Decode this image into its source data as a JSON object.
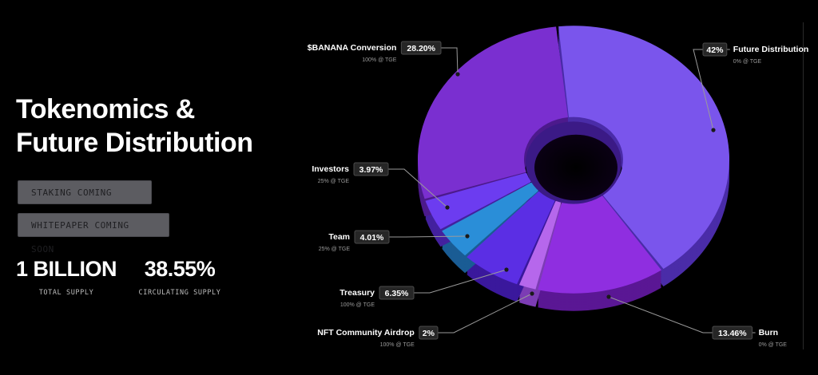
{
  "hero": {
    "title_line1": "Tokenomics &",
    "title_line2": "Future Distribution",
    "staking_button": "STAKING COMING SOON",
    "whitepaper_button": "WHITEPAPER COMING SOON"
  },
  "stats": {
    "total_supply_value": "1 BILLION",
    "total_supply_label": "TOTAL SUPPLY",
    "circulating_value": "38.55%",
    "circulating_label": "CIRCULATING SUPPLY"
  },
  "chart_data": {
    "type": "pie",
    "style": "3d-donut",
    "slices": [
      {
        "label": "Future Distribution",
        "value": 42,
        "value_text": "42%",
        "sublabel": "0% @ TGE",
        "color": "#7a55ec",
        "side": "#4a2ca8"
      },
      {
        "label": "Burn",
        "value": 13.46,
        "value_text": "13.46%",
        "sublabel": "0% @ TGE",
        "color": "#8f2ee0",
        "side": "#5a1794"
      },
      {
        "label": "NFT Community Airdrop",
        "value": 2,
        "value_text": "2%",
        "sublabel": "100% @ TGE",
        "color": "#b667ec",
        "side": "#7c3cb4"
      },
      {
        "label": "Treasury",
        "value": 6.35,
        "value_text": "6.35%",
        "sublabel": "100% @ TGE",
        "color": "#5b2ee4",
        "side": "#3a189c"
      },
      {
        "label": "Team",
        "value": 4.01,
        "value_text": "4.01%",
        "sublabel": "25% @ TGE",
        "color": "#2a8ed8",
        "side": "#1a5c94"
      },
      {
        "label": "Investors",
        "value": 3.97,
        "value_text": "3.97%",
        "sublabel": "25% @ TGE",
        "color": "#6c3cf0",
        "side": "#43219e"
      },
      {
        "label": "$BANANA Conversion",
        "value": 28.2,
        "value_text": "28.20%",
        "sublabel": "100% @ TGE",
        "color": "#7a2fd0",
        "side": "#4c1a8c"
      }
    ]
  }
}
